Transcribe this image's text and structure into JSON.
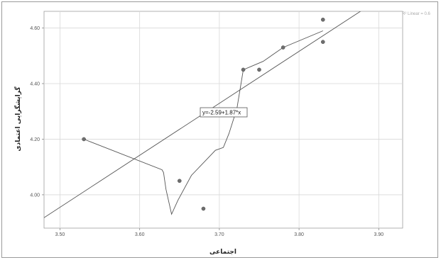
{
  "chart_data": {
    "type": "scatter",
    "title": "",
    "xlabel": "اجتماعی",
    "ylabel": "گرایشگرایی اعتمادی",
    "xlim": [
      3.48,
      3.93
    ],
    "ylim": [
      3.88,
      4.66
    ],
    "xticks": [
      "3.50",
      "3.60",
      "3.70",
      "3.80",
      "3.90"
    ],
    "yticks": [
      "4.00",
      "4.20",
      "4.40",
      "4.60"
    ],
    "grid": true,
    "points": [
      {
        "x": 3.53,
        "y": 4.2
      },
      {
        "x": 3.65,
        "y": 4.05
      },
      {
        "x": 3.68,
        "y": 3.95
      },
      {
        "x": 3.73,
        "y": 4.45
      },
      {
        "x": 3.75,
        "y": 4.45
      },
      {
        "x": 3.78,
        "y": 4.53
      },
      {
        "x": 3.83,
        "y": 4.55
      },
      {
        "x": 3.83,
        "y": 4.63
      }
    ],
    "fit_line": {
      "intercept": -2.59,
      "slope": 1.87
    },
    "fit_label": "y=-2.59+1.87*x",
    "r2_label": "R² Linear = 0.6",
    "loess": [
      {
        "x": 3.53,
        "y": 4.2
      },
      {
        "x": 3.628,
        "y": 4.09
      },
      {
        "x": 3.63,
        "y": 4.08
      },
      {
        "x": 3.633,
        "y": 4.02
      },
      {
        "x": 3.64,
        "y": 3.93
      },
      {
        "x": 3.648,
        "y": 3.98
      },
      {
        "x": 3.665,
        "y": 4.07
      },
      {
        "x": 3.685,
        "y": 4.13
      },
      {
        "x": 3.695,
        "y": 4.16
      },
      {
        "x": 3.705,
        "y": 4.17
      },
      {
        "x": 3.712,
        "y": 4.22
      },
      {
        "x": 3.722,
        "y": 4.31
      },
      {
        "x": 3.73,
        "y": 4.45
      },
      {
        "x": 3.755,
        "y": 4.48
      },
      {
        "x": 3.78,
        "y": 4.53
      },
      {
        "x": 3.83,
        "y": 4.59
      }
    ],
    "colors": {
      "points": "#6e6e6e",
      "lines": "#555555",
      "grid": "#d8d8d8"
    }
  }
}
